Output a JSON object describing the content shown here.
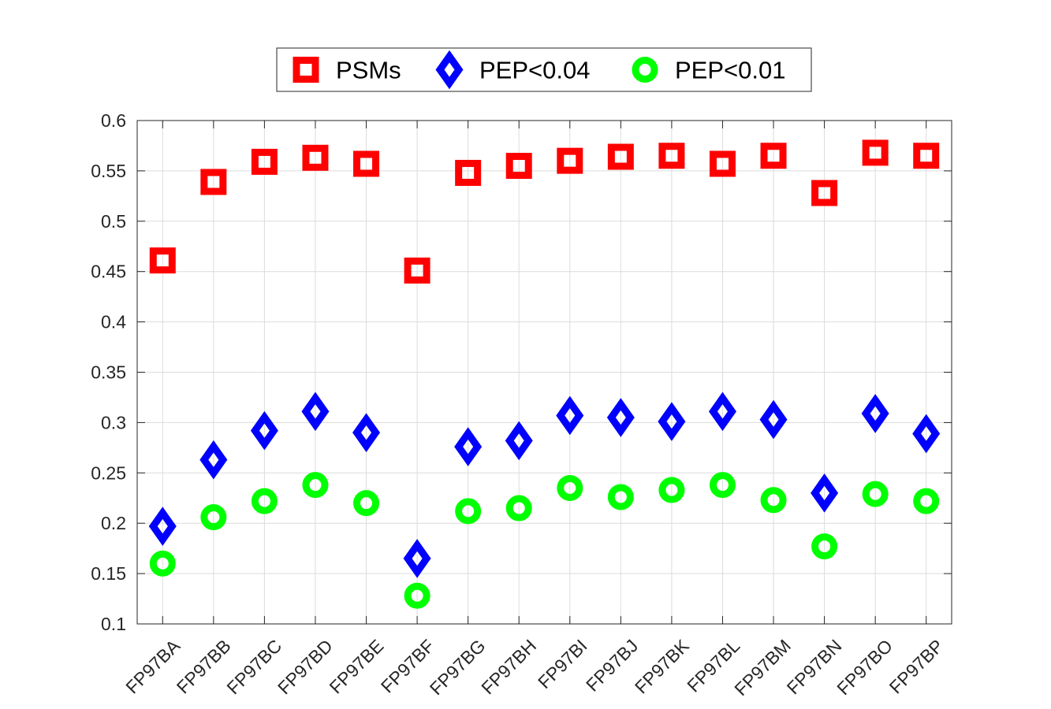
{
  "chart_data": {
    "type": "scatter",
    "title": "",
    "xlabel": "",
    "ylabel": "",
    "categories": [
      "FP97BA",
      "FP97BB",
      "FP97BC",
      "FP97BD",
      "FP97BE",
      "FP97BF",
      "FP97BG",
      "FP97BH",
      "FP97BI",
      "FP97BJ",
      "FP97BK",
      "FP97BL",
      "FP97BM",
      "FP97BN",
      "FP97BO",
      "FP97BP"
    ],
    "ylim": [
      0.1,
      0.6
    ],
    "yticks": [
      "0.1",
      "0.15",
      "0.2",
      "0.25",
      "0.3",
      "0.35",
      "0.4",
      "0.45",
      "0.5",
      "0.55",
      "0.6"
    ],
    "grid": true,
    "legend_position": "top-center, outside",
    "series": [
      {
        "name": "PSMs",
        "color": "#ff0000",
        "marker": "square",
        "values": [
          0.461,
          0.539,
          0.559,
          0.563,
          0.557,
          0.451,
          0.548,
          0.555,
          0.56,
          0.564,
          0.565,
          0.557,
          0.565,
          0.528,
          0.568,
          0.565
        ]
      },
      {
        "name": "PEP<0.04",
        "color": "#0000ff",
        "marker": "diamond",
        "values": [
          0.197,
          0.263,
          0.292,
          0.311,
          0.29,
          0.165,
          0.276,
          0.282,
          0.307,
          0.305,
          0.301,
          0.311,
          0.303,
          0.23,
          0.309,
          0.289
        ]
      },
      {
        "name": "PEP<0.01",
        "color": "#00ff00",
        "marker": "circle",
        "values": [
          0.16,
          0.206,
          0.222,
          0.238,
          0.22,
          0.128,
          0.212,
          0.215,
          0.235,
          0.226,
          0.233,
          0.238,
          0.223,
          0.177,
          0.229,
          0.222
        ]
      }
    ]
  }
}
